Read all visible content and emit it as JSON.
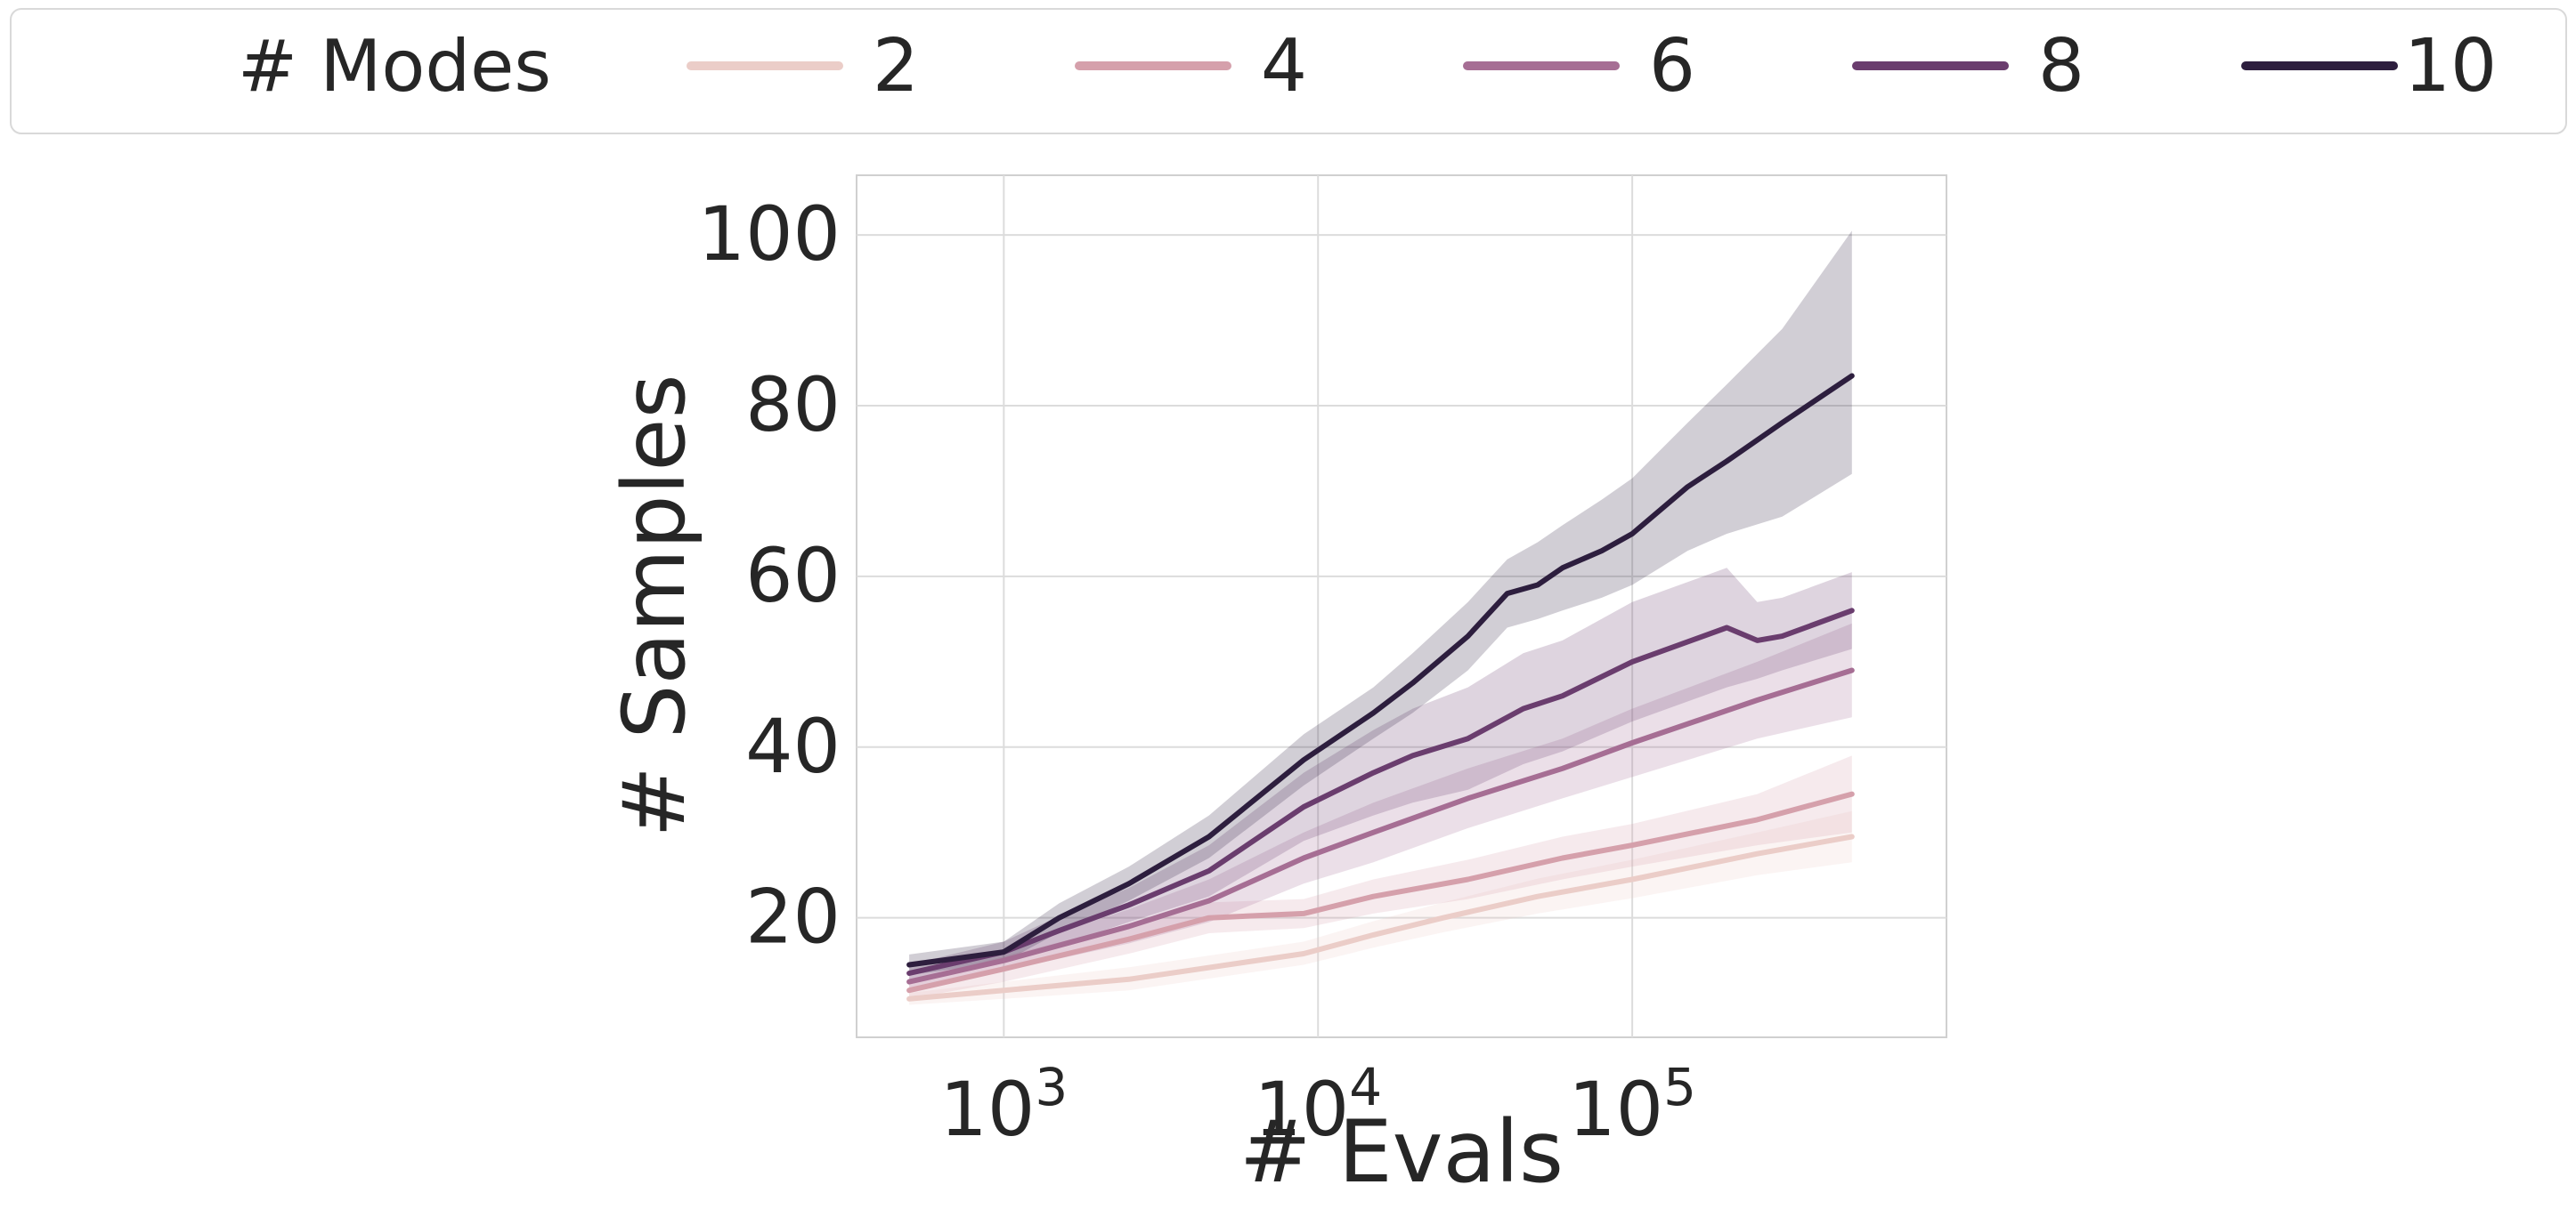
{
  "chart_data": {
    "type": "line",
    "title": "",
    "xlabel": "# Evals",
    "ylabel": "# Samples",
    "xscale": "log",
    "xlim": [
      340,
      1000000
    ],
    "ylim": [
      6,
      107
    ],
    "xticks": [
      {
        "value": 1000,
        "base": "10",
        "exp": "3"
      },
      {
        "value": 10000,
        "base": "10",
        "exp": "4"
      },
      {
        "value": 100000,
        "base": "10",
        "exp": "5"
      }
    ],
    "yticks": [
      20,
      40,
      60,
      80,
      100
    ],
    "grid": true,
    "legend": {
      "title": "# Modes",
      "placement": "top, horizontal, outside plot",
      "entries": [
        "2",
        "4",
        "6",
        "8",
        "10"
      ]
    },
    "series": [
      {
        "name": "2",
        "color": "#ebcdc8",
        "x": [
          500,
          1000,
          2500,
          9000,
          15000,
          25000,
          50000,
          100000,
          250000,
          500000
        ],
        "y": [
          10.5,
          11.5,
          12.8,
          15.8,
          18.0,
          20.0,
          22.5,
          24.5,
          27.5,
          29.5
        ],
        "lower": [
          9.8,
          10.5,
          11.5,
          14.5,
          16.5,
          18.3,
          20.5,
          22.3,
          25.0,
          26.5
        ],
        "upper": [
          11.2,
          12.5,
          14.2,
          17.2,
          19.6,
          21.8,
          24.6,
          26.8,
          30.0,
          32.5
        ]
      },
      {
        "name": "4",
        "color": "#d5a0ab",
        "x": [
          500,
          1000,
          2500,
          4500,
          9000,
          15000,
          30000,
          60000,
          100000,
          250000,
          500000
        ],
        "y": [
          11.5,
          14.0,
          17.5,
          20.0,
          20.5,
          22.5,
          24.5,
          27.0,
          28.5,
          31.5,
          34.5
        ],
        "lower": [
          10.5,
          12.5,
          15.8,
          18.2,
          18.8,
          20.5,
          22.2,
          24.5,
          26.0,
          28.5,
          30.0
        ],
        "upper": [
          12.5,
          15.5,
          19.2,
          21.8,
          22.2,
          24.5,
          26.8,
          29.5,
          31.0,
          34.5,
          39.0
        ]
      },
      {
        "name": "6",
        "color": "#a66e94",
        "x": [
          500,
          1000,
          2500,
          4500,
          9000,
          15000,
          30000,
          60000,
          100000,
          250000,
          500000
        ],
        "y": [
          12.5,
          15.0,
          19.0,
          22.0,
          27.0,
          30.0,
          34.0,
          37.5,
          40.5,
          45.5,
          49.0
        ],
        "lower": [
          11.5,
          13.8,
          17.0,
          19.5,
          24.0,
          26.5,
          30.5,
          34.0,
          36.5,
          41.0,
          43.5
        ],
        "upper": [
          13.5,
          16.2,
          21.0,
          24.5,
          30.0,
          33.5,
          37.5,
          41.0,
          44.5,
          50.0,
          54.5
        ]
      },
      {
        "name": "8",
        "color": "#6a3d6e",
        "x": [
          500,
          1000,
          1500,
          2500,
          4500,
          9000,
          15000,
          20000,
          30000,
          45000,
          60000,
          100000,
          200000,
          250000,
          300000,
          500000
        ],
        "y": [
          13.5,
          16.0,
          18.5,
          21.5,
          25.5,
          33.0,
          37.0,
          39.0,
          41.0,
          44.5,
          46.0,
          50.0,
          54.0,
          52.5,
          53.0,
          56.0
        ],
        "lower": [
          12.5,
          14.8,
          16.8,
          19.5,
          22.5,
          29.0,
          32.0,
          33.5,
          35.0,
          38.0,
          39.5,
          43.0,
          47.0,
          48.0,
          49.0,
          51.5
        ],
        "upper": [
          14.5,
          17.2,
          20.2,
          23.5,
          28.5,
          37.0,
          42.0,
          44.5,
          47.0,
          51.0,
          52.5,
          57.0,
          61.0,
          57.0,
          57.5,
          60.5
        ]
      },
      {
        "name": "10",
        "color": "#2d1e3e",
        "x": [
          500,
          1000,
          1500,
          2500,
          4500,
          9000,
          15000,
          20000,
          30000,
          40000,
          50000,
          60000,
          80000,
          100000,
          150000,
          200000,
          300000,
          500000
        ],
        "y": [
          14.5,
          16.0,
          20.0,
          24.0,
          29.5,
          38.5,
          44.0,
          47.5,
          53.0,
          58.0,
          59.0,
          61.0,
          63.0,
          65.0,
          70.5,
          73.5,
          78.0,
          83.5
        ],
        "lower": [
          13.3,
          14.8,
          18.3,
          22.0,
          27.0,
          35.5,
          41.0,
          44.0,
          49.0,
          54.0,
          55.0,
          56.0,
          57.5,
          59.0,
          63.0,
          65.0,
          67.0,
          72.0
        ],
        "upper": [
          15.7,
          17.2,
          21.7,
          26.0,
          32.0,
          41.5,
          47.0,
          51.0,
          57.0,
          62.0,
          64.0,
          66.0,
          69.0,
          71.5,
          78.0,
          82.5,
          89.0,
          100.5
        ]
      }
    ]
  }
}
